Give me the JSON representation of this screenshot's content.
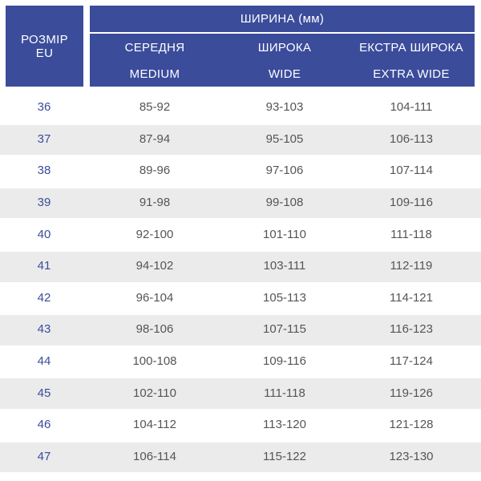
{
  "header": {
    "size_label": [
      "РОЗМІР",
      "EU"
    ],
    "width_title": "ШИРИНА (мм)",
    "columns": [
      {
        "name": "СЕРЕДНЯ",
        "sub": "MEDIUM"
      },
      {
        "name": "ШИРОКА",
        "sub": "WIDE"
      },
      {
        "name": "ЕКСТРА ШИРОКА",
        "sub": "EXTRA WIDE"
      }
    ]
  },
  "table": {
    "rows": [
      [
        "36",
        "85-92",
        "93-103",
        "104-111"
      ],
      [
        "37",
        "87-94",
        "95-105",
        "106-113"
      ],
      [
        "38",
        "89-96",
        "97-106",
        "107-114"
      ],
      [
        "39",
        "91-98",
        "99-108",
        "109-116"
      ],
      [
        "40",
        "92-100",
        "101-110",
        "111-118"
      ],
      [
        "41",
        "94-102",
        "103-111",
        "112-119"
      ],
      [
        "42",
        "96-104",
        "105-113",
        "114-121"
      ],
      [
        "43",
        "98-106",
        "107-115",
        "116-123"
      ],
      [
        "44",
        "100-108",
        "109-116",
        "117-124"
      ],
      [
        "45",
        "102-110",
        "111-118",
        "119-126"
      ],
      [
        "46",
        "104-112",
        "113-120",
        "121-128"
      ],
      [
        "47",
        "106-114",
        "115-122",
        "123-130"
      ]
    ]
  }
}
